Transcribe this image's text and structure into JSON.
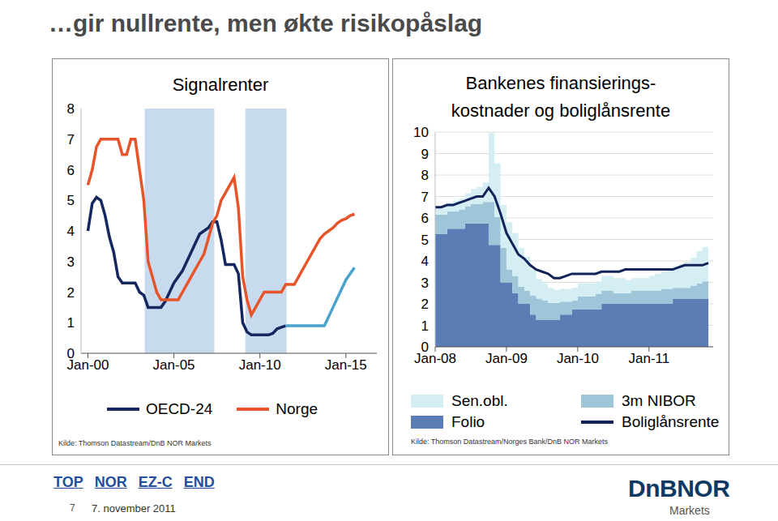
{
  "title": "…gir nullrente, men økte risikopåslag",
  "chart_data": [
    {
      "type": "line",
      "title": "Signalrenter",
      "source": "Kilde: Thomson Datastream/DnB NOR Markets",
      "x": [
        2000,
        2000.25,
        2000.5,
        2000.75,
        2001,
        2001.25,
        2001.5,
        2001.75,
        2002,
        2002.25,
        2002.5,
        2002.75,
        2003,
        2003.25,
        2003.5,
        2003.75,
        2004,
        2004.25,
        2004.5,
        2004.75,
        2005,
        2005.25,
        2005.5,
        2005.75,
        2006,
        2006.25,
        2006.5,
        2006.75,
        2007,
        2007.25,
        2007.5,
        2007.75,
        2008,
        2008.25,
        2008.5,
        2008.75,
        2009,
        2009.25,
        2009.5,
        2009.75,
        2010,
        2010.25,
        2010.5,
        2010.75,
        2011,
        2011.25,
        2011.5,
        2011.75,
        2012,
        2012.25,
        2012.5,
        2012.75,
        2013,
        2013.25,
        2013.5,
        2013.75,
        2014,
        2014.25,
        2014.5,
        2014.75,
        2015,
        2015.25,
        2015.5
      ],
      "series": [
        {
          "name": "OECD-24",
          "color": "#14275e",
          "values": [
            4.0,
            4.9,
            5.1,
            5.0,
            4.5,
            3.8,
            3.3,
            2.5,
            2.3,
            2.3,
            2.3,
            2.3,
            2.0,
            1.9,
            1.5,
            1.5,
            1.5,
            1.5,
            1.7,
            2.0,
            2.3,
            2.5,
            2.7,
            3.0,
            3.3,
            3.6,
            3.9,
            4.0,
            4.1,
            4.3,
            4.3,
            3.7,
            2.9,
            2.9,
            2.9,
            2.6,
            1.0,
            0.7,
            0.6,
            0.6,
            0.6,
            0.6,
            0.6,
            0.65,
            0.8,
            0.85,
            0.9,
            null,
            null,
            null,
            null,
            null,
            null,
            null,
            null,
            null,
            null,
            null,
            null,
            null,
            null,
            null,
            null
          ]
        },
        {
          "name": "Norge",
          "color": "#e8542a",
          "values": [
            5.5,
            6.0,
            6.75,
            7.0,
            7.0,
            7.0,
            7.0,
            7.0,
            6.5,
            6.5,
            7.0,
            7.0,
            6.0,
            5.0,
            3.0,
            2.5,
            2.0,
            1.75,
            1.75,
            1.75,
            1.75,
            1.75,
            2.0,
            2.25,
            2.5,
            2.75,
            3.0,
            3.25,
            3.75,
            4.25,
            4.5,
            5.0,
            5.25,
            5.5,
            5.75,
            4.75,
            2.5,
            1.75,
            1.25,
            1.5,
            1.75,
            2.0,
            2.0,
            2.0,
            2.0,
            2.0,
            2.25,
            2.25,
            2.25,
            2.5,
            2.75,
            3.0,
            3.25,
            3.5,
            3.75,
            3.9,
            4.0,
            4.1,
            4.25,
            4.35,
            4.4,
            4.5,
            4.55
          ]
        },
        {
          "color": "#4aa3cc",
          "values": [
            null,
            null,
            null,
            null,
            null,
            null,
            null,
            null,
            null,
            null,
            null,
            null,
            null,
            null,
            null,
            null,
            null,
            null,
            null,
            null,
            null,
            null,
            null,
            null,
            null,
            null,
            null,
            null,
            null,
            null,
            null,
            null,
            null,
            null,
            null,
            null,
            null,
            null,
            null,
            null,
            null,
            null,
            null,
            null,
            null,
            null,
            0.9,
            0.9,
            0.9,
            0.9,
            0.9,
            0.9,
            0.9,
            0.9,
            0.9,
            0.9,
            1.2,
            1.5,
            1.8,
            2.1,
            2.4,
            2.6,
            2.8
          ]
        }
      ],
      "bands": [
        {
          "start": 2003.3,
          "end": 2007.35,
          "color": "#c8dbee"
        },
        {
          "start": 2009.15,
          "end": 2011.55,
          "color": "#c8dbee"
        }
      ],
      "xlim": [
        1999.6,
        2016.8
      ],
      "xticks": [
        {
          "value": 2000,
          "label": "Jan-00"
        },
        {
          "value": 2005,
          "label": "Jan-05"
        },
        {
          "value": 2010,
          "label": "Jan-10"
        },
        {
          "value": 2015,
          "label": "Jan-15"
        }
      ],
      "ylim": [
        0,
        8
      ],
      "yticks": [
        0,
        1,
        2,
        3,
        4,
        5,
        6,
        7,
        8
      ],
      "grid": false
    },
    {
      "type": "area",
      "stacked": true,
      "title": "Bankenes finansierings-\nkostnader og boliglånsrente",
      "source": "Kilde: Thomson Datastream/Norges Bank/DnB NOR Markets",
      "x": [
        2008,
        2008.083,
        2008.167,
        2008.25,
        2008.333,
        2008.417,
        2008.5,
        2008.583,
        2008.667,
        2008.75,
        2008.833,
        2008.917,
        2009,
        2009.083,
        2009.167,
        2009.25,
        2009.333,
        2009.417,
        2009.5,
        2009.583,
        2009.667,
        2009.75,
        2009.833,
        2009.917,
        2010,
        2010.083,
        2010.167,
        2010.25,
        2010.333,
        2010.417,
        2010.5,
        2010.583,
        2010.667,
        2010.75,
        2010.833,
        2010.917,
        2011,
        2011.083,
        2011.167,
        2011.25,
        2011.333,
        2011.417,
        2011.5,
        2011.583,
        2011.667,
        2011.75,
        2011.833
      ],
      "series": [
        {
          "name": "Sen.obl.",
          "type": "area",
          "color": "#d4eef3",
          "values": [
            0.3,
            0.4,
            0.4,
            0.5,
            0.5,
            0.6,
            0.7,
            0.8,
            0.9,
            3.2,
            2.5,
            2.0,
            2.2,
            2.0,
            1.8,
            1.6,
            1.2,
            0.9,
            0.8,
            0.7,
            0.6,
            0.6,
            0.6,
            0.6,
            0.6,
            0.6,
            0.6,
            0.6,
            0.7,
            0.7,
            0.7,
            0.7,
            0.6,
            0.6,
            0.6,
            0.6,
            0.7,
            0.8,
            0.8,
            0.9,
            1.0,
            1.1,
            1.2,
            1.3,
            1.5,
            1.6,
            1.8
          ]
        },
        {
          "name": "3m NIBOR",
          "type": "area",
          "color": "#9ec6d8",
          "values": [
            0.9,
            0.9,
            0.8,
            0.8,
            0.9,
            0.8,
            0.9,
            0.9,
            1.0,
            2.0,
            1.3,
            1.6,
            0.6,
            0.8,
            0.8,
            0.6,
            0.9,
            1.0,
            0.9,
            0.8,
            0.8,
            0.6,
            0.6,
            0.4,
            0.6,
            0.6,
            0.6,
            0.7,
            0.6,
            0.6,
            0.5,
            0.5,
            0.5,
            0.6,
            0.6,
            0.6,
            0.6,
            0.6,
            0.7,
            0.7,
            0.5,
            0.5,
            0.5,
            0.6,
            0.7,
            0.8,
            0.9
          ]
        },
        {
          "name": "Folio",
          "type": "area",
          "color": "#5a7db6",
          "values": [
            5.25,
            5.25,
            5.5,
            5.5,
            5.5,
            5.75,
            5.75,
            5.75,
            5.75,
            4.75,
            4.75,
            3.0,
            3.0,
            2.5,
            2.0,
            2.0,
            1.5,
            1.25,
            1.25,
            1.25,
            1.25,
            1.5,
            1.5,
            1.75,
            1.75,
            1.75,
            1.75,
            1.75,
            2.0,
            2.0,
            2.0,
            2.0,
            2.0,
            2.0,
            2.0,
            2.0,
            2.0,
            2.0,
            2.0,
            2.0,
            2.25,
            2.25,
            2.25,
            2.25,
            2.25,
            2.25,
            2.25
          ]
        },
        {
          "name": "Boliglånsrente",
          "type": "line",
          "color": "#12235a",
          "values": [
            6.5,
            6.5,
            6.6,
            6.6,
            6.7,
            6.8,
            6.9,
            7.0,
            7.0,
            7.4,
            7.0,
            6.2,
            5.3,
            4.8,
            4.3,
            4.1,
            3.8,
            3.6,
            3.5,
            3.4,
            3.2,
            3.2,
            3.3,
            3.4,
            3.4,
            3.4,
            3.4,
            3.4,
            3.5,
            3.5,
            3.5,
            3.5,
            3.6,
            3.6,
            3.6,
            3.6,
            3.6,
            3.6,
            3.6,
            3.6,
            3.6,
            3.7,
            3.8,
            3.8,
            3.8,
            3.8,
            3.9
          ]
        }
      ],
      "xlim": [
        2008,
        2011.9
      ],
      "xticks": [
        {
          "value": 2008,
          "label": "Jan-08"
        },
        {
          "value": 2009,
          "label": "Jan-09"
        },
        {
          "value": 2010,
          "label": "Jan-10"
        },
        {
          "value": 2011,
          "label": "Jan-11"
        }
      ],
      "ylim": [
        0,
        10
      ],
      "yticks": [
        0,
        1,
        2,
        3,
        4,
        5,
        6,
        7,
        8,
        9,
        10
      ],
      "grid": true
    }
  ],
  "footer": {
    "links": [
      "TOP",
      "NOR",
      "EZ-C",
      "END"
    ],
    "page": "7",
    "date": "7. november 2011",
    "logo": "DnBNOR",
    "logo_subtitle": "Markets"
  }
}
